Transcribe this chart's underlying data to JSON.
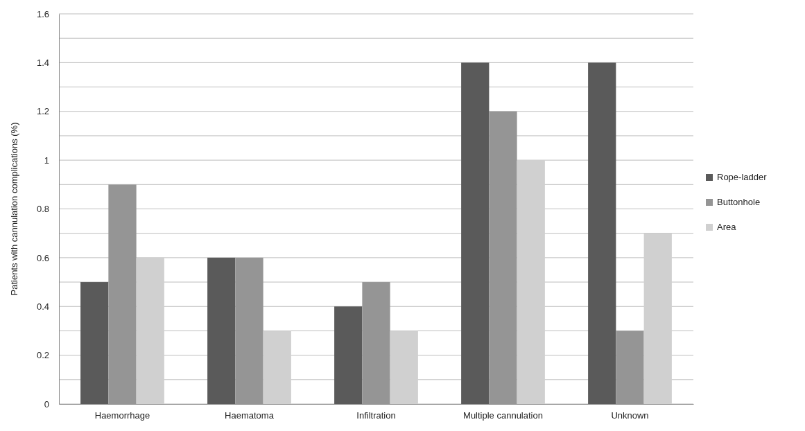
{
  "chart_data": {
    "type": "bar",
    "ylabel": "Patients with cannulation complications (%)",
    "categories": [
      "Haemorrhage",
      "Haematoma",
      "Infiltration",
      "Multiple cannulation",
      "Unknown"
    ],
    "series": [
      {
        "name": "Rope-ladder",
        "color": "#5a5a5a",
        "values": [
          0.5,
          0.6,
          0.4,
          1.4,
          1.4
        ]
      },
      {
        "name": "Buttonhole",
        "color": "#959595",
        "values": [
          0.9,
          0.6,
          0.5,
          1.2,
          0.3
        ]
      },
      {
        "name": "Area",
        "color": "#d0d0d0",
        "values": [
          0.6,
          0.3,
          0.3,
          1.0,
          0.7
        ]
      }
    ],
    "ylim": [
      0,
      1.6
    ],
    "yticks": [
      0,
      {
        "value": 0.1,
        "label": null
      },
      0.2,
      {
        "value": 0.3,
        "label": null
      },
      0.4,
      {
        "value": 0.5,
        "label": null
      },
      0.6,
      {
        "value": 0.7,
        "label": null
      },
      0.8,
      {
        "value": 0.9,
        "label": null
      },
      1,
      {
        "value": 1.1,
        "label": null
      },
      1.2,
      {
        "value": 1.3,
        "label": null
      },
      1.4,
      {
        "value": 1.5,
        "label": null
      },
      1.6
    ],
    "grid": "y",
    "legend": "right"
  }
}
